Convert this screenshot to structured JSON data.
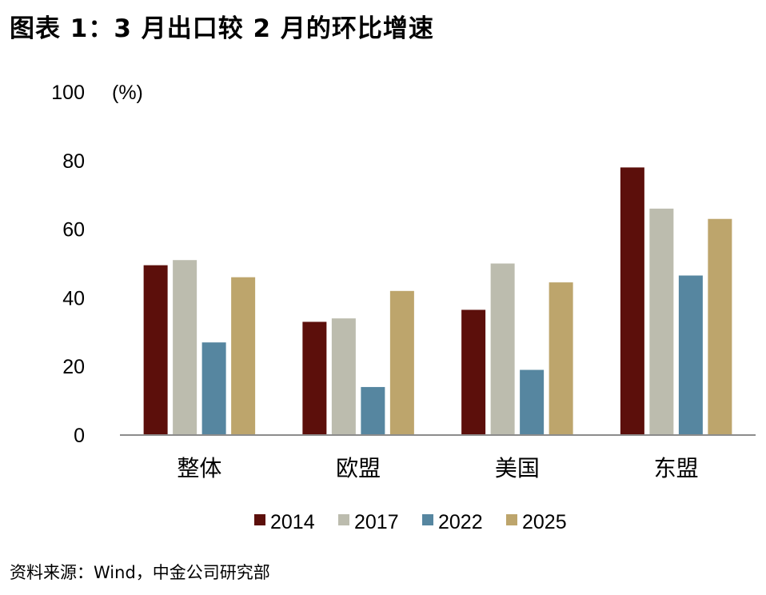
{
  "title": "图表 1：3 月出口较 2 月的环比增速",
  "source": "资料来源：Wind，中金公司研究部",
  "chart_data": {
    "type": "bar",
    "unit_label": "(%)",
    "categories": [
      "整体",
      "欧盟",
      "美国",
      "东盟"
    ],
    "series": [
      {
        "name": "2014",
        "color": "#5c0f0b",
        "values": [
          49.5,
          33,
          36.5,
          78
        ]
      },
      {
        "name": "2017",
        "color": "#bcbcae",
        "values": [
          51,
          34,
          50,
          66
        ]
      },
      {
        "name": "2022",
        "color": "#5686a0",
        "values": [
          27,
          14,
          19,
          46.5
        ]
      },
      {
        "name": "2025",
        "color": "#bda56c",
        "values": [
          46,
          42,
          44.5,
          63
        ]
      }
    ],
    "ylim": [
      0,
      100
    ],
    "yticks": [
      0,
      20,
      40,
      60,
      80,
      100
    ],
    "grid": false,
    "legend_position": "bottom"
  }
}
